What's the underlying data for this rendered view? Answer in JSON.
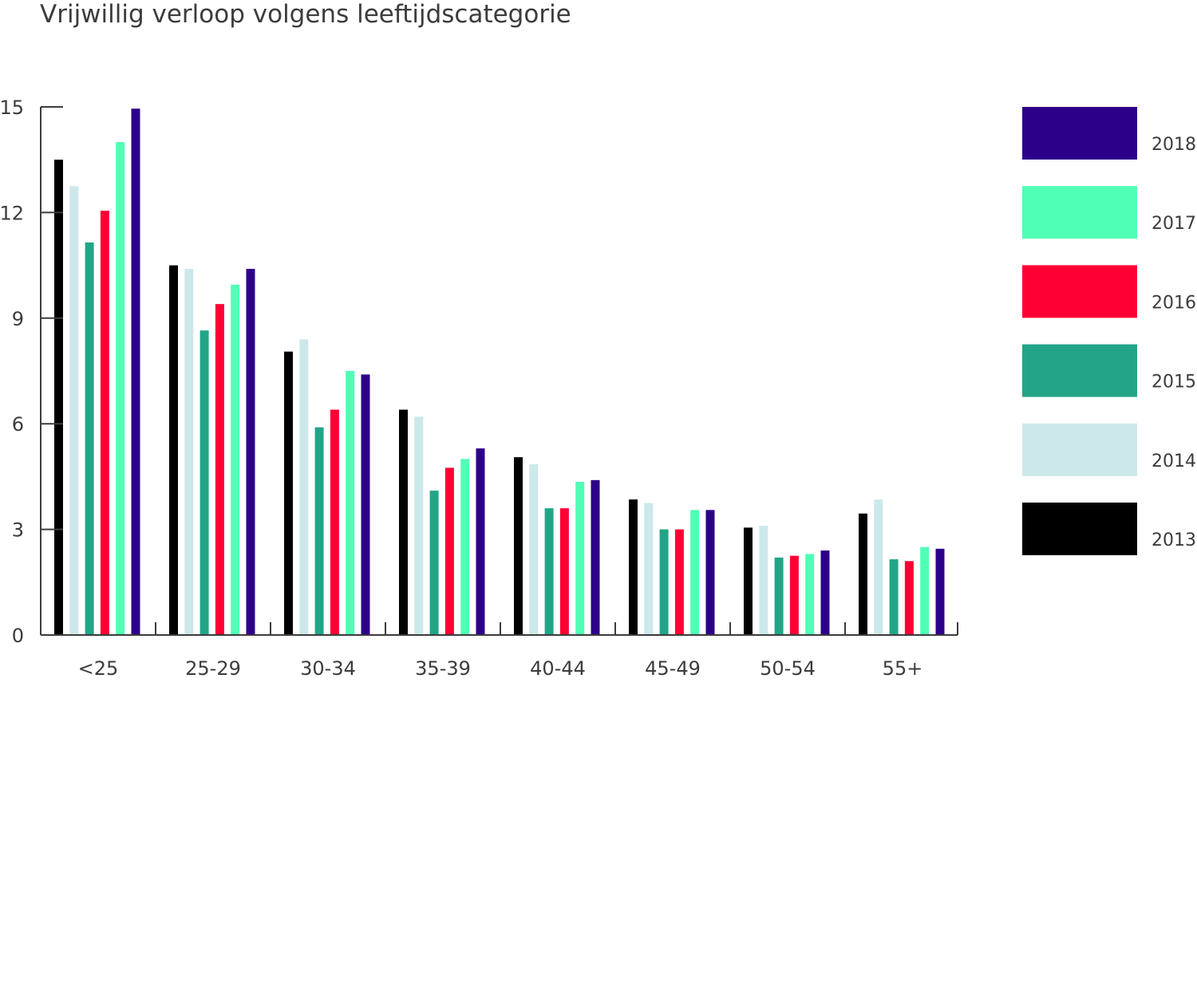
{
  "chart_data": {
    "type": "bar",
    "title": "Vrijwillig verloop volgens leeftijdscategorie",
    "xlabel": "",
    "ylabel": "",
    "ylim": [
      0,
      15
    ],
    "yticks": [
      0,
      3,
      6,
      9,
      12,
      15
    ],
    "grid": false,
    "legend_position": "right",
    "categories": [
      "<25",
      "25-29",
      "30-34",
      "35-39",
      "40-44",
      "45-49",
      "50-54",
      "55+"
    ],
    "series": [
      {
        "name": "2013",
        "color": "#000000",
        "values": [
          13.5,
          10.5,
          8.05,
          6.4,
          5.05,
          3.85,
          3.05,
          3.45
        ]
      },
      {
        "name": "2014",
        "color": "#cde8ea",
        "values": [
          12.75,
          10.4,
          8.4,
          6.2,
          4.85,
          3.75,
          3.1,
          3.85
        ]
      },
      {
        "name": "2015",
        "color": "#22a586",
        "values": [
          11.15,
          8.65,
          5.9,
          4.1,
          3.6,
          3.0,
          2.2,
          2.15
        ]
      },
      {
        "name": "2016",
        "color": "#ff0035",
        "values": [
          12.05,
          9.4,
          6.4,
          4.75,
          3.6,
          3.0,
          2.25,
          2.1
        ]
      },
      {
        "name": "2017",
        "color": "#50ffb6",
        "values": [
          14.0,
          9.95,
          7.5,
          5.0,
          4.35,
          3.55,
          2.3,
          2.5
        ]
      },
      {
        "name": "2018",
        "color": "#2d0089",
        "values": [
          14.95,
          10.4,
          7.4,
          5.3,
          4.4,
          3.55,
          2.4,
          2.45
        ]
      }
    ]
  }
}
